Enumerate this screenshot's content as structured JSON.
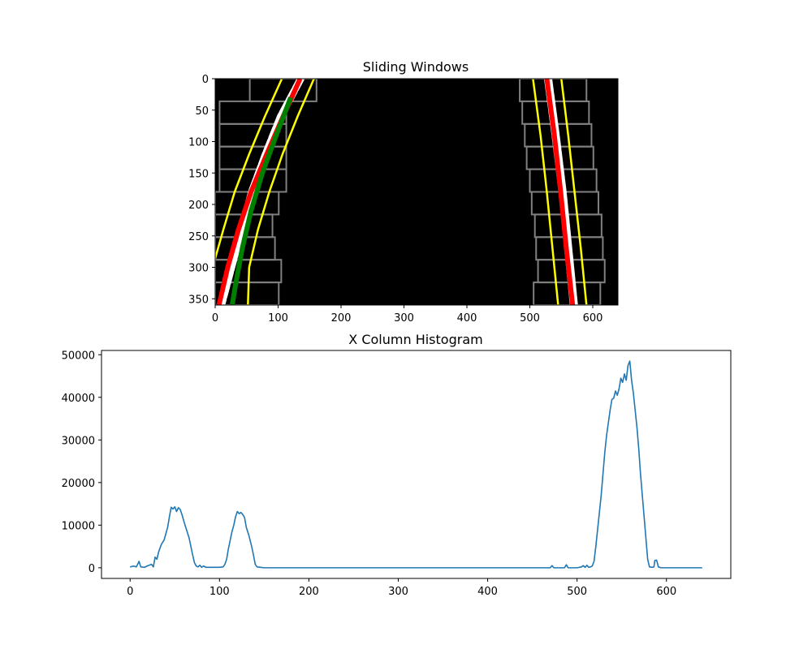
{
  "chart_data": [
    {
      "type": "image",
      "title": "Sliding Windows",
      "xlim": [
        0,
        640
      ],
      "ylim": [
        360,
        0
      ],
      "xticks": [
        0,
        100,
        200,
        300,
        400,
        500,
        600
      ],
      "yticks": [
        0,
        50,
        100,
        150,
        200,
        250,
        300,
        350
      ],
      "background": "#000000",
      "windows": {
        "color": "#808080",
        "height": 36,
        "left_x_ranges": [
          [
            55,
            161
          ],
          [
            7,
            113
          ],
          [
            7,
            113
          ],
          [
            7,
            113
          ],
          [
            7,
            113
          ],
          [
            0,
            101
          ],
          [
            0,
            91
          ],
          [
            0,
            95
          ],
          [
            0,
            105
          ],
          [
            0,
            101
          ]
        ],
        "right_x_ranges": [
          [
            484,
            590
          ],
          [
            488,
            594
          ],
          [
            492,
            598
          ],
          [
            495,
            601
          ],
          [
            500,
            606
          ],
          [
            503,
            609
          ],
          [
            508,
            614
          ],
          [
            510,
            616
          ],
          [
            513,
            619
          ],
          [
            506,
            612
          ]
        ]
      },
      "lane_pixels": {
        "color": "#ffffff",
        "left_x_at_y": [
          [
            0,
            136
          ],
          [
            60,
            104
          ],
          [
            120,
            80
          ],
          [
            180,
            58
          ],
          [
            240,
            42
          ],
          [
            300,
            26
          ],
          [
            360,
            10
          ]
        ],
        "right_x_at_y": [
          [
            0,
            529
          ],
          [
            90,
            541
          ],
          [
            180,
            552
          ],
          [
            270,
            561
          ],
          [
            360,
            570
          ]
        ]
      },
      "series": [
        {
          "color": "#ff0000",
          "x_at_y": [
            [
              0,
              135
            ],
            [
              60,
              108
            ],
            [
              120,
              82
            ],
            [
              180,
              57
            ],
            [
              240,
              37
            ],
            [
              300,
              20
            ],
            [
              360,
              6
            ]
          ]
        },
        {
          "color": "#ff0000",
          "x_at_y": [
            [
              0,
              527
            ],
            [
              90,
              539
            ],
            [
              180,
              549
            ],
            [
              270,
              558
            ],
            [
              360,
              568
            ]
          ]
        },
        {
          "color": "#008000",
          "x_at_y": [
            [
              30,
              120
            ],
            [
              90,
              97
            ],
            [
              150,
              75
            ],
            [
              210,
              57
            ],
            [
              270,
              43
            ],
            [
              330,
              32
            ],
            [
              360,
              27
            ]
          ]
        },
        {
          "color": "#ffff00",
          "x_at_y": [
            [
              0,
              106
            ],
            [
              60,
              79
            ],
            [
              120,
              54
            ],
            [
              180,
              31
            ],
            [
              240,
              13
            ],
            [
              300,
              -4
            ],
            [
              360,
              -16
            ]
          ]
        },
        {
          "color": "#ffff00",
          "x_at_y": [
            [
              0,
              157
            ],
            [
              60,
              131
            ],
            [
              120,
              107
            ],
            [
              180,
              86
            ],
            [
              240,
              68
            ],
            [
              300,
              54
            ],
            [
              360,
              52
            ]
          ]
        },
        {
          "color": "#ffff00",
          "x_at_y": [
            [
              0,
              505
            ],
            [
              90,
              517
            ],
            [
              180,
              527
            ],
            [
              270,
              536
            ],
            [
              360,
              545
            ]
          ]
        },
        {
          "color": "#ffff00",
          "x_at_y": [
            [
              0,
              550
            ],
            [
              90,
              561
            ],
            [
              180,
              571
            ],
            [
              270,
              581
            ],
            [
              360,
              590
            ]
          ]
        }
      ]
    },
    {
      "type": "line",
      "title": "X Column Histogram",
      "xlim": [
        -32,
        672
      ],
      "ylim": [
        -2500,
        51000
      ],
      "xticks": [
        0,
        100,
        200,
        300,
        400,
        500,
        600
      ],
      "yticks": [
        0,
        10000,
        20000,
        30000,
        40000,
        50000
      ],
      "series": [
        {
          "color": "#1f77b4",
          "points": [
            [
              0,
              200
            ],
            [
              4,
              400
            ],
            [
              7,
              200
            ],
            [
              10,
              1500
            ],
            [
              12,
              200
            ],
            [
              16,
              100
            ],
            [
              20,
              500
            ],
            [
              24,
              800
            ],
            [
              26,
              200
            ],
            [
              28,
              2500
            ],
            [
              30,
              2000
            ],
            [
              32,
              3800
            ],
            [
              35,
              5500
            ],
            [
              38,
              6500
            ],
            [
              40,
              8000
            ],
            [
              42,
              9500
            ],
            [
              44,
              12000
            ],
            [
              46,
              14200
            ],
            [
              48,
              13800
            ],
            [
              50,
              14300
            ],
            [
              52,
              13200
            ],
            [
              54,
              14100
            ],
            [
              56,
              13700
            ],
            [
              58,
              12500
            ],
            [
              60,
              11000
            ],
            [
              63,
              9000
            ],
            [
              66,
              7000
            ],
            [
              68,
              5000
            ],
            [
              70,
              3000
            ],
            [
              72,
              1200
            ],
            [
              74,
              400
            ],
            [
              76,
              200
            ],
            [
              78,
              600
            ],
            [
              80,
              100
            ],
            [
              82,
              400
            ],
            [
              85,
              100
            ],
            [
              88,
              100
            ],
            [
              95,
              100
            ],
            [
              100,
              100
            ],
            [
              104,
              200
            ],
            [
              106,
              800
            ],
            [
              108,
              2000
            ],
            [
              110,
              4500
            ],
            [
              112,
              6500
            ],
            [
              114,
              8500
            ],
            [
              116,
              10000
            ],
            [
              118,
              12000
            ],
            [
              120,
              13200
            ],
            [
              122,
              12700
            ],
            [
              124,
              13000
            ],
            [
              126,
              12500
            ],
            [
              128,
              11800
            ],
            [
              130,
              9500
            ],
            [
              133,
              7500
            ],
            [
              136,
              5000
            ],
            [
              138,
              3000
            ],
            [
              140,
              800
            ],
            [
              142,
              200
            ],
            [
              150,
              0
            ],
            [
              200,
              0
            ],
            [
              300,
              0
            ],
            [
              400,
              0
            ],
            [
              470,
              0
            ],
            [
              472,
              500
            ],
            [
              474,
              0
            ],
            [
              480,
              0
            ],
            [
              486,
              0
            ],
            [
              488,
              700
            ],
            [
              490,
              0
            ],
            [
              500,
              0
            ],
            [
              505,
              200
            ],
            [
              507,
              500
            ],
            [
              509,
              100
            ],
            [
              511,
              600
            ],
            [
              513,
              100
            ],
            [
              515,
              200
            ],
            [
              517,
              400
            ],
            [
              519,
              1500
            ],
            [
              521,
              5000
            ],
            [
              523,
              9000
            ],
            [
              525,
              13000
            ],
            [
              527,
              17000
            ],
            [
              529,
              22000
            ],
            [
              531,
              27000
            ],
            [
              533,
              31000
            ],
            [
              535,
              34000
            ],
            [
              537,
              37000
            ],
            [
              539,
              39500
            ],
            [
              541,
              39800
            ],
            [
              543,
              41500
            ],
            [
              545,
              40500
            ],
            [
              547,
              42000
            ],
            [
              549,
              44500
            ],
            [
              551,
              43500
            ],
            [
              553,
              45500
            ],
            [
              555,
              44000
            ],
            [
              557,
              47500
            ],
            [
              559,
              48500
            ],
            [
              561,
              44000
            ],
            [
              563,
              41000
            ],
            [
              565,
              37000
            ],
            [
              567,
              33000
            ],
            [
              569,
              28000
            ],
            [
              571,
              22000
            ],
            [
              573,
              17000
            ],
            [
              575,
              12000
            ],
            [
              577,
              7000
            ],
            [
              579,
              2000
            ],
            [
              581,
              200
            ],
            [
              584,
              100
            ],
            [
              586,
              200
            ],
            [
              587,
              1700
            ],
            [
              589,
              1800
            ],
            [
              591,
              200
            ],
            [
              594,
              0
            ],
            [
              600,
              0
            ],
            [
              640,
              0
            ]
          ]
        }
      ]
    }
  ]
}
